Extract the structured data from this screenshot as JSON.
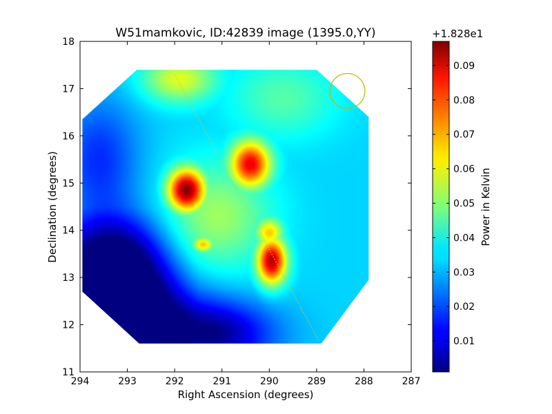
{
  "chart_data": {
    "type": "heatmap",
    "title": "W51mamkovic, ID:42839 image (1395.0,YY)",
    "xlabel": "Right Ascension (degrees)",
    "ylabel": "Declination (degrees)",
    "xlim": [
      294,
      287
    ],
    "ylim": [
      11,
      18
    ],
    "x_ticks": [
      294,
      293,
      292,
      291,
      290,
      289,
      288,
      287
    ],
    "y_ticks": [
      11,
      12,
      13,
      14,
      15,
      16,
      17,
      18
    ],
    "x_tick_labels": [
      "294",
      "293",
      "292",
      "291",
      "290",
      "289",
      "288",
      "287"
    ],
    "y_tick_labels": [
      "11",
      "12",
      "13",
      "14",
      "15",
      "16",
      "17",
      "18"
    ],
    "colorbar": {
      "label": "Power in Kelvin",
      "offset_text": "+1.828e1",
      "range": [
        0.001,
        0.097
      ],
      "ticks": [
        0.01,
        0.02,
        0.03,
        0.04,
        0.05,
        0.06,
        0.07,
        0.08,
        0.09
      ],
      "tick_labels": [
        "0.01",
        "0.02",
        "0.03",
        "0.04",
        "0.05",
        "0.06",
        "0.07",
        "0.08",
        "0.09"
      ],
      "colormap": "jet"
    },
    "background_level": 0.033,
    "sources": [
      {
        "ra": 291.75,
        "dec": 14.85,
        "peak": 0.097,
        "sigma_ra": 0.28,
        "sigma_dec": 0.32
      },
      {
        "ra": 290.4,
        "dec": 15.4,
        "peak": 0.087,
        "sigma_ra": 0.3,
        "sigma_dec": 0.35
      },
      {
        "ra": 289.95,
        "dec": 13.35,
        "peak": 0.092,
        "sigma_ra": 0.22,
        "sigma_dec": 0.35
      },
      {
        "ra": 290.0,
        "dec": 13.95,
        "peak": 0.066,
        "sigma_ra": 0.2,
        "sigma_dec": 0.22
      },
      {
        "ra": 291.4,
        "dec": 13.7,
        "peak": 0.068,
        "sigma_ra": 0.16,
        "sigma_dec": 0.12
      },
      {
        "ra": 291.9,
        "dec": 17.2,
        "peak": 0.058,
        "sigma_ra": 0.55,
        "sigma_dec": 0.35
      },
      {
        "ra": 291.1,
        "dec": 14.3,
        "peak": 0.052,
        "sigma_ra": 0.8,
        "sigma_dec": 0.8
      },
      {
        "ra": 289.7,
        "dec": 16.8,
        "peak": 0.045,
        "sigma_ra": 0.8,
        "sigma_dec": 0.6
      }
    ],
    "low_regions": [
      {
        "ra": 293.2,
        "dec": 13.3,
        "depth": 0.03,
        "sigma_ra": 0.7,
        "sigma_dec": 0.7
      },
      {
        "ra": 291.2,
        "dec": 11.8,
        "depth": 0.03,
        "sigma_ra": 0.9,
        "sigma_dec": 0.5
      },
      {
        "ra": 293.6,
        "dec": 15.5,
        "depth": 0.016,
        "sigma_ra": 0.6,
        "sigma_dec": 0.9
      },
      {
        "ra": 293.0,
        "dec": 12.4,
        "depth": 0.022,
        "sigma_ra": 1.0,
        "sigma_dec": 0.6
      }
    ],
    "map_region_polygon": [
      [
        292.8,
        17.4
      ],
      [
        289.0,
        17.4
      ],
      [
        287.9,
        16.4
      ],
      [
        287.9,
        12.95
      ],
      [
        288.9,
        11.6
      ],
      [
        292.75,
        11.6
      ],
      [
        293.95,
        12.7
      ],
      [
        293.95,
        16.35
      ]
    ],
    "galactic_plane_line": [
      [
        292.0,
        17.3
      ],
      [
        288.95,
        11.65
      ]
    ],
    "beam_circle": {
      "ra": 288.35,
      "dec": 16.95,
      "radius_deg": 0.37,
      "color": "#bbbb00"
    },
    "colors": {
      "line": "#cccc33",
      "frame": "#000000"
    }
  }
}
